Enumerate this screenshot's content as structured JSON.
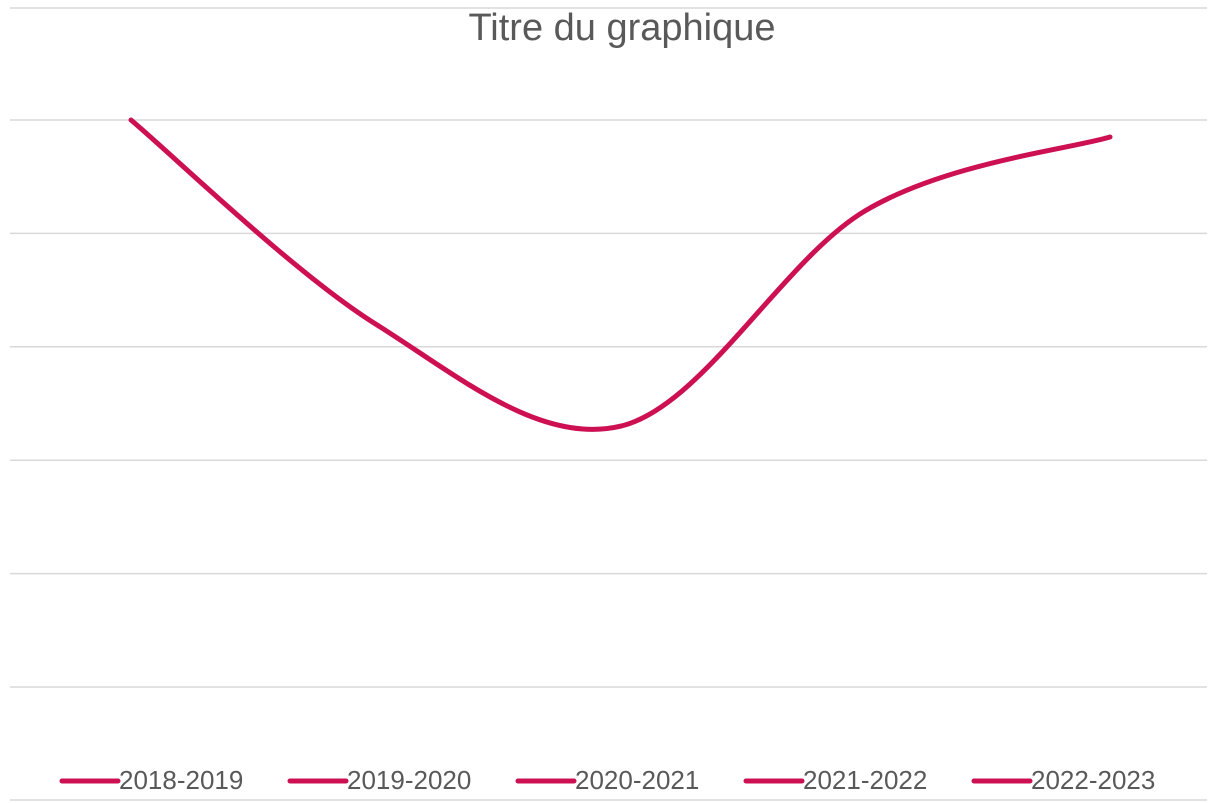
{
  "chart_data": {
    "type": "line",
    "title": "Titre du graphique",
    "categories": [
      "2018-2019",
      "2019-2020",
      "2020-2021",
      "2021-2022",
      "2022-2023"
    ],
    "values": [
      5,
      3.2,
      2.3,
      4.2,
      4.85
    ],
    "color": "#cc1052",
    "ylim": [
      0,
      5
    ],
    "yticks": [
      0,
      1,
      2,
      3,
      4,
      5
    ],
    "grid": true,
    "smooth": true,
    "legend": "bottom"
  }
}
